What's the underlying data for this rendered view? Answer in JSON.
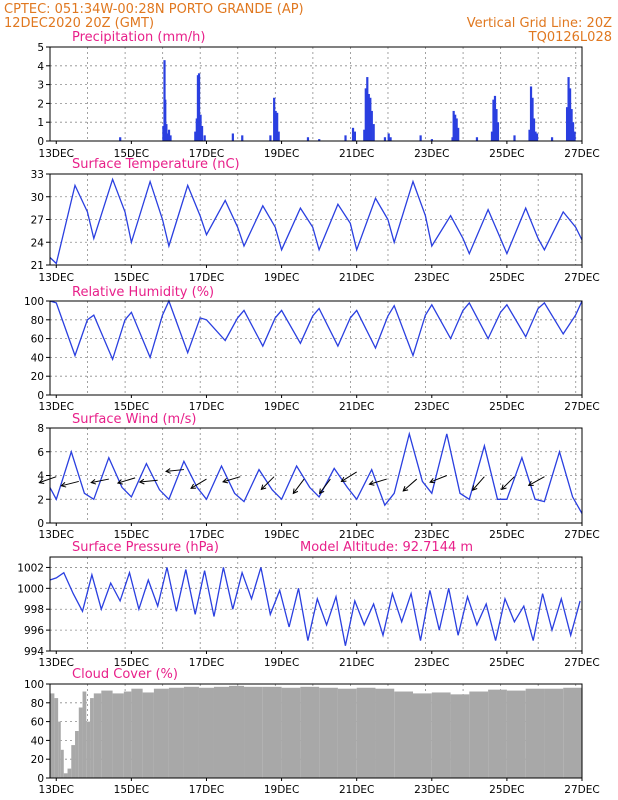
{
  "header": {
    "left_line1": "CPTEC:   051:34W-00:28N  PORTO GRANDE (AP)",
    "left_line2": "12DEC2020 20Z (GMT)",
    "right_line1": "Vertical Grid Line: 20Z",
    "right_line2": "TQ0126L028"
  },
  "colors": {
    "header": "#e07820",
    "title": "#e8208a",
    "line": "#2a3fe0",
    "bar": "#2a3fe0",
    "cloud": "#a8a8a8"
  },
  "x_axis": {
    "start_day": 12.8333,
    "end_day": 27.0,
    "grid_hour_utc": "20Z",
    "tick_labels": [
      "13DEC",
      "15DEC",
      "17DEC",
      "19DEC",
      "21DEC",
      "23DEC",
      "25DEC",
      "27DEC"
    ],
    "tick_days": [
      13,
      15,
      17,
      19,
      21,
      23,
      25,
      27
    ]
  },
  "chart_data": [
    {
      "type": "bar",
      "title": "Precipitation (mm/h)",
      "ylim": [
        0,
        5
      ],
      "yticks": [
        0,
        1,
        2,
        3,
        4,
        5
      ],
      "x": [
        14.7,
        15.85,
        15.88,
        15.9,
        15.93,
        15.96,
        16.0,
        16.04,
        16.7,
        16.74,
        16.77,
        16.8,
        16.84,
        16.88,
        16.95,
        17.7,
        17.95,
        18.7,
        18.8,
        18.84,
        18.88,
        18.92,
        19.7,
        20.0,
        20.7,
        20.9,
        20.95,
        21.2,
        21.24,
        21.28,
        21.32,
        21.36,
        21.4,
        21.45,
        21.75,
        21.85,
        21.9,
        22.7,
        23.0,
        23.55,
        23.58,
        23.62,
        23.66,
        23.7,
        24.2,
        24.6,
        24.64,
        24.68,
        24.72,
        24.76,
        25.2,
        25.6,
        25.64,
        25.68,
        25.72,
        25.76,
        25.8,
        26.2,
        26.6,
        26.64,
        26.68,
        26.72,
        26.76,
        26.8
      ],
      "values": [
        0.2,
        0.8,
        4.3,
        2.2,
        0.9,
        0.4,
        0.6,
        0.3,
        0.5,
        1.2,
        3.5,
        3.6,
        1.4,
        0.8,
        0.3,
        0.4,
        0.3,
        0.3,
        2.3,
        1.6,
        1.5,
        0.5,
        0.2,
        0.1,
        0.3,
        0.7,
        0.5,
        0.6,
        2.8,
        3.4,
        2.5,
        2.3,
        1.6,
        0.9,
        0.2,
        0.4,
        0.2,
        0.3,
        0.1,
        0.2,
        1.6,
        1.4,
        1.2,
        0.7,
        0.2,
        0.5,
        2.2,
        2.4,
        1.7,
        1.0,
        0.3,
        0.6,
        2.9,
        2.3,
        1.2,
        0.5,
        0.4,
        0.2,
        1.8,
        3.4,
        2.8,
        1.7,
        1.0,
        0.5
      ]
    },
    {
      "type": "line",
      "title": "Surface Temperature (nC)",
      "ylim": [
        21,
        33
      ],
      "yticks": [
        21,
        24,
        27,
        30,
        33
      ],
      "x": [
        12.83,
        13.0,
        13.5,
        13.83,
        14.0,
        14.5,
        14.83,
        15.0,
        15.5,
        15.83,
        16.0,
        16.5,
        16.83,
        17.0,
        17.5,
        17.83,
        18.0,
        18.5,
        18.83,
        19.0,
        19.5,
        19.83,
        20.0,
        20.5,
        20.83,
        21.0,
        21.5,
        21.83,
        22.0,
        22.5,
        22.83,
        23.0,
        23.5,
        23.83,
        24.0,
        24.5,
        24.83,
        25.0,
        25.5,
        25.83,
        26.0,
        26.5,
        26.83,
        27.0
      ],
      "values": [
        22.0,
        21.2,
        31.5,
        28.0,
        24.5,
        32.3,
        28.0,
        24.0,
        32.0,
        27.0,
        23.5,
        31.5,
        27.5,
        25.0,
        29.5,
        26.0,
        23.5,
        28.8,
        26.0,
        23.0,
        28.5,
        26.0,
        23.0,
        29.0,
        26.5,
        23.0,
        29.8,
        27.0,
        24.0,
        32.0,
        27.5,
        23.5,
        27.5,
        24.5,
        22.5,
        28.3,
        24.5,
        22.5,
        28.5,
        24.5,
        23.0,
        28.0,
        26.0,
        24.3
      ]
    },
    {
      "type": "line",
      "title": "Relative Humidity (%)",
      "ylim": [
        0,
        100
      ],
      "yticks": [
        0,
        20,
        40,
        60,
        80,
        100
      ],
      "x": [
        12.83,
        13.0,
        13.5,
        13.83,
        14.0,
        14.5,
        14.83,
        15.0,
        15.5,
        15.83,
        16.0,
        16.5,
        16.83,
        17.0,
        17.5,
        17.83,
        18.0,
        18.5,
        18.83,
        19.0,
        19.5,
        19.83,
        20.0,
        20.5,
        20.83,
        21.0,
        21.5,
        21.83,
        22.0,
        22.5,
        22.83,
        23.0,
        23.5,
        23.83,
        24.0,
        24.5,
        24.83,
        25.0,
        25.5,
        25.83,
        26.0,
        26.5,
        26.83,
        27.0
      ],
      "values": [
        100,
        98,
        42,
        80,
        85,
        38,
        80,
        88,
        40,
        85,
        100,
        45,
        82,
        80,
        58,
        82,
        90,
        52,
        82,
        90,
        55,
        84,
        92,
        52,
        82,
        90,
        50,
        84,
        95,
        42,
        85,
        96,
        60,
        90,
        98,
        60,
        88,
        96,
        62,
        92,
        98,
        65,
        85,
        100
      ]
    },
    {
      "type": "line",
      "title": "Surface Wind (m/s)",
      "ylim": [
        0,
        8
      ],
      "yticks": [
        0,
        2,
        4,
        6,
        8
      ],
      "x": [
        12.83,
        13.0,
        13.4,
        13.75,
        14.0,
        14.4,
        14.75,
        15.0,
        15.4,
        15.75,
        16.0,
        16.4,
        16.75,
        17.0,
        17.4,
        17.75,
        18.0,
        18.4,
        18.75,
        19.0,
        19.4,
        19.75,
        20.0,
        20.4,
        20.75,
        21.0,
        21.4,
        21.75,
        22.0,
        22.4,
        22.75,
        23.0,
        23.4,
        23.75,
        24.0,
        24.4,
        24.75,
        25.0,
        25.4,
        25.75,
        26.0,
        26.4,
        26.75,
        27.0
      ],
      "values": [
        3.0,
        2.0,
        6.0,
        2.5,
        2.0,
        5.5,
        3.0,
        2.2,
        5.0,
        2.8,
        2.0,
        5.2,
        3.0,
        2.0,
        4.8,
        2.5,
        1.8,
        4.5,
        2.8,
        2.0,
        4.8,
        3.0,
        2.2,
        4.6,
        3.0,
        2.0,
        4.5,
        1.5,
        2.5,
        7.5,
        3.5,
        2.5,
        7.5,
        2.5,
        2.0,
        6.5,
        2.0,
        2.0,
        5.5,
        2.0,
        1.8,
        6.0,
        2.2,
        0.8
      ],
      "barbs": [
        {
          "day": 13.0,
          "y": 3.9,
          "dx": -1,
          "dy": 0.35
        },
        {
          "day": 13.6,
          "y": 3.5,
          "dx": -1,
          "dy": 0.25
        },
        {
          "day": 14.4,
          "y": 3.7,
          "dx": -1,
          "dy": 0.2
        },
        {
          "day": 15.1,
          "y": 3.8,
          "dx": -1,
          "dy": 0.3
        },
        {
          "day": 15.7,
          "y": 3.6,
          "dx": -1,
          "dy": 0.1
        },
        {
          "day": 16.4,
          "y": 4.5,
          "dx": -1,
          "dy": 0.1
        },
        {
          "day": 17.0,
          "y": 3.7,
          "dx": -1,
          "dy": 0.6
        },
        {
          "day": 17.9,
          "y": 3.9,
          "dx": -1,
          "dy": 0.3
        },
        {
          "day": 18.8,
          "y": 3.9,
          "dx": -0.8,
          "dy": 0.8
        },
        {
          "day": 19.6,
          "y": 3.7,
          "dx": -0.6,
          "dy": 0.8
        },
        {
          "day": 20.3,
          "y": 3.7,
          "dx": -0.6,
          "dy": 0.8
        },
        {
          "day": 21.0,
          "y": 4.3,
          "dx": -0.8,
          "dy": 0.5
        },
        {
          "day": 21.8,
          "y": 3.7,
          "dx": -1,
          "dy": 0.3
        },
        {
          "day": 22.6,
          "y": 3.7,
          "dx": -0.8,
          "dy": 0.7
        },
        {
          "day": 23.4,
          "y": 4.0,
          "dx": -1,
          "dy": 0.4
        },
        {
          "day": 24.4,
          "y": 3.9,
          "dx": -0.7,
          "dy": 0.8
        },
        {
          "day": 25.2,
          "y": 3.9,
          "dx": -0.7,
          "dy": 0.7
        },
        {
          "day": 26.0,
          "y": 3.9,
          "dx": -0.9,
          "dy": 0.5
        }
      ]
    },
    {
      "type": "line",
      "title": "Surface Pressure (hPa)",
      "annotation": "Model Altitude: 92.7144 m",
      "ylim": [
        994,
        1003
      ],
      "yticks": [
        994,
        996,
        998,
        1000,
        1002
      ],
      "x": [
        12.83,
        13.0,
        13.2,
        13.45,
        13.7,
        13.95,
        14.2,
        14.45,
        14.7,
        14.95,
        15.2,
        15.45,
        15.7,
        15.95,
        16.2,
        16.45,
        16.7,
        16.95,
        17.2,
        17.45,
        17.7,
        17.95,
        18.2,
        18.45,
        18.7,
        18.95,
        19.2,
        19.45,
        19.7,
        19.95,
        20.2,
        20.45,
        20.7,
        20.95,
        21.2,
        21.45,
        21.7,
        21.95,
        22.2,
        22.45,
        22.7,
        22.95,
        23.2,
        23.45,
        23.7,
        23.95,
        24.2,
        24.45,
        24.7,
        24.95,
        25.2,
        25.45,
        25.7,
        25.95,
        26.2,
        26.45,
        26.7,
        26.95
      ],
      "values": [
        1000.8,
        1001.0,
        1001.5,
        999.5,
        997.8,
        1001.3,
        998.0,
        1000.5,
        998.8,
        1001.5,
        998.0,
        1000.8,
        998.3,
        1002.0,
        997.8,
        1001.8,
        997.5,
        1001.7,
        997.3,
        1002.0,
        998.0,
        1001.5,
        999.0,
        1002.0,
        997.5,
        999.8,
        996.3,
        1000.0,
        995.0,
        999.0,
        996.5,
        999.2,
        994.5,
        998.8,
        996.5,
        998.5,
        995.5,
        999.5,
        996.8,
        999.5,
        995.0,
        999.8,
        996.0,
        1000.0,
        995.5,
        999.2,
        996.5,
        998.5,
        995.0,
        999.0,
        996.8,
        998.3,
        995.0,
        999.5,
        996.0,
        999.0,
        995.5,
        998.8
      ]
    },
    {
      "type": "area",
      "title": "Cloud Cover (%)",
      "ylim": [
        0,
        100
      ],
      "yticks": [
        0,
        20,
        40,
        60,
        80,
        100
      ],
      "x": [
        12.83,
        12.95,
        13.05,
        13.12,
        13.2,
        13.3,
        13.4,
        13.5,
        13.6,
        13.7,
        13.8,
        13.9,
        14.0,
        14.2,
        14.5,
        14.8,
        15.0,
        15.3,
        15.6,
        16.0,
        16.4,
        16.8,
        17.2,
        17.6,
        18.0,
        18.5,
        19.0,
        19.5,
        20.0,
        20.5,
        21.0,
        21.5,
        22.0,
        22.5,
        23.0,
        23.5,
        24.0,
        24.5,
        25.0,
        25.5,
        26.0,
        26.5,
        27.0
      ],
      "values": [
        90,
        85,
        60,
        30,
        5,
        10,
        35,
        50,
        75,
        92,
        60,
        85,
        90,
        93,
        90,
        92,
        95,
        91,
        95,
        96,
        97,
        96,
        97,
        98,
        97,
        97,
        96,
        97,
        96,
        95,
        96,
        95,
        92,
        90,
        91,
        89,
        92,
        94,
        93,
        95,
        95,
        96,
        95
      ]
    }
  ]
}
